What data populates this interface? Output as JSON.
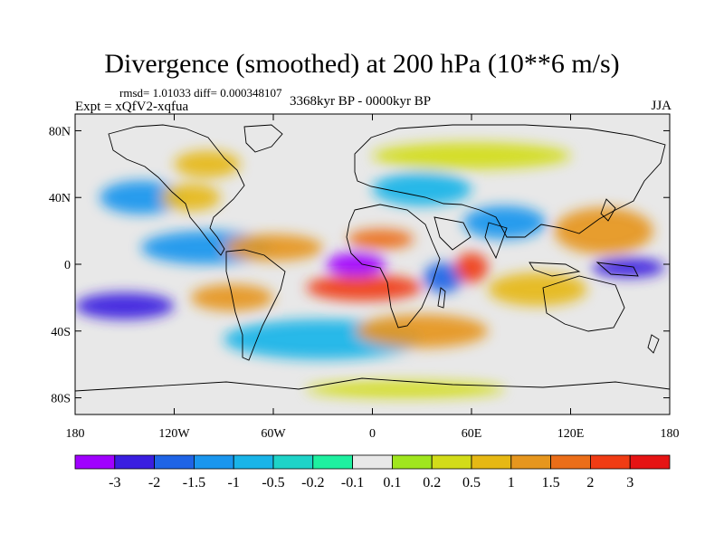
{
  "chart_data": {
    "type": "heatmap",
    "title": "Divergence (smoothed) at 200 hPa (10**6 m/s)",
    "stats": "rmsd= 1.01033 diff= 0.000348107",
    "experiment": "Expt = xQfV2-xqfua",
    "period": "3368kyr BP - 0000kyr BP",
    "season": "JJA",
    "x_range": [
      -180,
      180
    ],
    "y_range": [
      -90,
      90
    ],
    "x_ticks": [
      {
        "value": -180,
        "label": "180"
      },
      {
        "value": -120,
        "label": "120W"
      },
      {
        "value": -60,
        "label": "60W"
      },
      {
        "value": 0,
        "label": "0"
      },
      {
        "value": 60,
        "label": "60E"
      },
      {
        "value": 120,
        "label": "120E"
      },
      {
        "value": 180,
        "label": "180"
      }
    ],
    "y_ticks": [
      {
        "value": 80,
        "label": "80N"
      },
      {
        "value": 40,
        "label": "40N"
      },
      {
        "value": 0,
        "label": "0"
      },
      {
        "value": -40,
        "label": "40S"
      },
      {
        "value": -80,
        "label": "80S"
      }
    ],
    "colorbar": {
      "colors": [
        "#a000ff",
        "#3a1ee0",
        "#1f64e6",
        "#1a96ee",
        "#19b4e8",
        "#1ed3c8",
        "#1ef0a0",
        "#e8e8e8",
        "#a0e61e",
        "#d2dc19",
        "#e6b814",
        "#e6961e",
        "#eb6e19",
        "#f03c14",
        "#e61414"
      ],
      "labels": [
        "-3",
        "-2",
        "-1.5",
        "-1",
        "-0.5",
        "-0.2",
        "-0.1",
        "0.1",
        "0.2",
        "0.5",
        "1",
        "1.5",
        "2",
        "3"
      ]
    },
    "field_anomalies": [
      {
        "lon": -10,
        "lat": 0,
        "value": -3.5,
        "rlon": 18,
        "rlat": 7
      },
      {
        "lon": -5,
        "lat": -14,
        "value": 2.5,
        "rlon": 35,
        "rlat": 8
      },
      {
        "lon": 5,
        "lat": 15,
        "value": 2.0,
        "rlon": 20,
        "rlat": 6
      },
      {
        "lon": 60,
        "lat": -2,
        "value": 3.0,
        "rlon": 10,
        "rlat": 9
      },
      {
        "lon": 43,
        "lat": -8,
        "value": -1.8,
        "rlon": 12,
        "rlat": 9
      },
      {
        "lon": 155,
        "lat": -2,
        "value": -2.5,
        "rlon": 22,
        "rlat": 6
      },
      {
        "lon": 140,
        "lat": 20,
        "value": 1.5,
        "rlon": 30,
        "rlat": 14
      },
      {
        "lon": -150,
        "lat": -25,
        "value": -2.0,
        "rlon": 30,
        "rlat": 8
      },
      {
        "lon": -100,
        "lat": 10,
        "value": -1.3,
        "rlon": 40,
        "rlat": 10
      },
      {
        "lon": -140,
        "lat": 40,
        "value": -1.0,
        "rlon": 25,
        "rlat": 10
      },
      {
        "lon": -110,
        "lat": 40,
        "value": 1.0,
        "rlon": 18,
        "rlat": 8
      },
      {
        "lon": -60,
        "lat": 10,
        "value": 1.5,
        "rlon": 30,
        "rlat": 8
      },
      {
        "lon": -85,
        "lat": -20,
        "value": 1.5,
        "rlon": 25,
        "rlat": 8
      },
      {
        "lon": -30,
        "lat": -45,
        "value": -0.8,
        "rlon": 60,
        "rlat": 12
      },
      {
        "lon": 30,
        "lat": -40,
        "value": 1.2,
        "rlon": 40,
        "rlat": 10
      },
      {
        "lon": 100,
        "lat": -15,
        "value": 1.0,
        "rlon": 30,
        "rlat": 10
      },
      {
        "lon": 80,
        "lat": 25,
        "value": -1.0,
        "rlon": 25,
        "rlat": 10
      },
      {
        "lon": 30,
        "lat": 45,
        "value": -0.6,
        "rlon": 30,
        "rlat": 10
      },
      {
        "lon": -100,
        "lat": 60,
        "value": 0.6,
        "rlon": 20,
        "rlat": 8
      },
      {
        "lon": 60,
        "lat": 65,
        "value": 0.4,
        "rlon": 60,
        "rlat": 8
      },
      {
        "lon": 20,
        "lat": -75,
        "value": 0.3,
        "rlon": 60,
        "rlat": 5
      }
    ]
  }
}
